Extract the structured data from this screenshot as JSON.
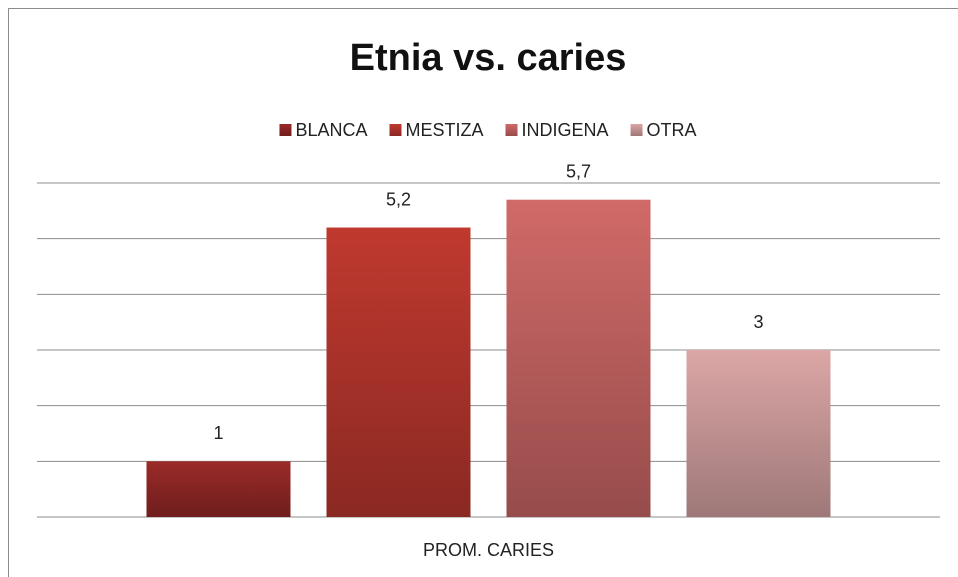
{
  "chart_data": {
    "type": "bar",
    "title": "Etnia vs. caries",
    "categories": [
      "PROM. CARIES"
    ],
    "series": [
      {
        "name": "BLANCA",
        "color": "#9a2a28",
        "values": [
          1
        ]
      },
      {
        "name": "MESTIZA",
        "color": "#c0392f",
        "values": [
          5.2
        ],
        "value_labels": [
          "5,2"
        ]
      },
      {
        "name": "INDIGENA",
        "color": "#d06a68",
        "values": [
          5.7
        ],
        "value_labels": [
          "5,7"
        ]
      },
      {
        "name": "OTRA",
        "color": "#dca6a6",
        "values": [
          3
        ]
      }
    ],
    "ylim": [
      0,
      6
    ],
    "yticks": [
      0,
      1,
      2,
      3,
      4,
      5,
      6
    ],
    "grid": true,
    "legend": "top"
  }
}
